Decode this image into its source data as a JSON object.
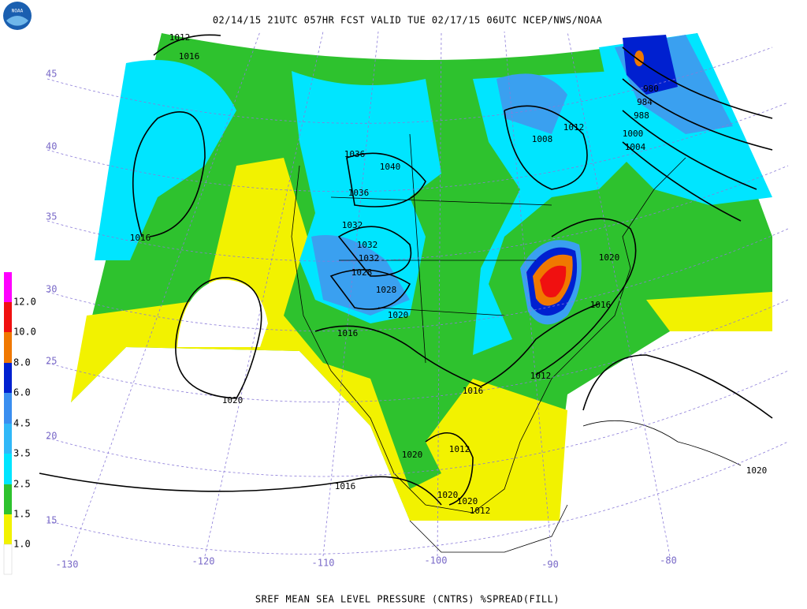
{
  "header": "02/14/15 21UTC  057HR  FCST VALID TUE 02/17/15 06UTC  NCEP/NWS/NOAA",
  "logo": "NOAA",
  "footer": "SREF MEAN SEA LEVEL PRESSURE (CNTRS) %SPREAD(FILL)",
  "legend": [
    "12.0",
    "10.0",
    "8.0",
    "6.0",
    "4.5",
    "3.5",
    "2.5",
    "1.5",
    "1.0"
  ],
  "latitude_labels": [
    "45",
    "40",
    "35",
    "30",
    "25",
    "20",
    "15"
  ],
  "longitude_labels": [
    "-130",
    "-120",
    "-110",
    "-100",
    "-90",
    "-80"
  ],
  "contour_labels": [
    "1012",
    "1016",
    "1016",
    "1020",
    "1016",
    "1016",
    "1020",
    "1028",
    "1028",
    "1032",
    "1032",
    "1032",
    "1036",
    "1036",
    "1040",
    "1008",
    "1012",
    "1016",
    "1020",
    "1012",
    "1016",
    "1020",
    "1012",
    "1020",
    "1020",
    "1012",
    "1020",
    "1000",
    "1004",
    "988",
    "984",
    "980"
  ]
}
